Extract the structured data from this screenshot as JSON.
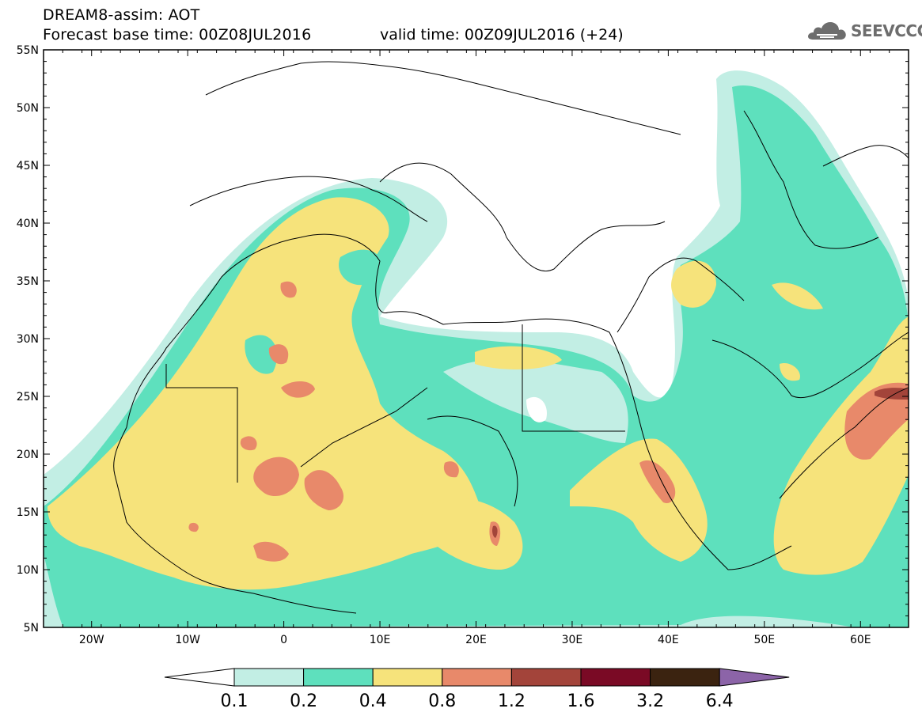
{
  "header": {
    "title_line_1": "DREAM8-assim: AOT",
    "title_line_2": "Forecast base time: 00Z08JUL2016",
    "valid_time": "valid time: 00Z09JUL2016 (+24)",
    "logo_text": "SEEVCCC"
  },
  "map": {
    "lat_labels": [
      "55N",
      "50N",
      "45N",
      "40N",
      "35N",
      "30N",
      "25N",
      "20N",
      "15N",
      "10N",
      "5N"
    ],
    "lon_labels": [
      "20W",
      "10W",
      "0",
      "10E",
      "20E",
      "30E",
      "40E",
      "50E",
      "60E"
    ],
    "extent": {
      "lon_min": -25,
      "lon_max": 65,
      "lat_min": 5,
      "lat_max": 55
    }
  },
  "legend": {
    "labels": [
      "0.1",
      "0.2",
      "0.4",
      "0.8",
      "1.2",
      "1.6",
      "3.2",
      "6.4"
    ],
    "colors": {
      "below": "#ffffff",
      "c1": "#c2eee4",
      "c2": "#5ee0bd",
      "c3": "#f6e37b",
      "c4": "#e8896a",
      "c5": "#a3443a",
      "c6": "#7a0a25",
      "c7": "#3b2310",
      "above": "#8c64a8"
    }
  }
}
